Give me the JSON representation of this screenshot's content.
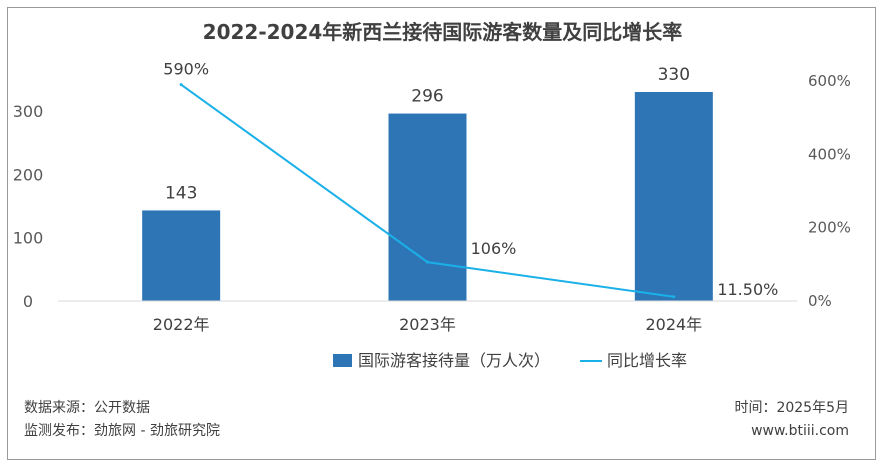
{
  "chart_data": {
    "type": "bar",
    "title": "2022-2024年新西兰接待国际游客数量及同比增长率",
    "categories": [
      "2022年",
      "2023年",
      "2024年"
    ],
    "series": [
      {
        "name": "国际游客接待量（万人次）",
        "type": "bar",
        "axis": "left",
        "values": [
          143,
          296,
          330
        ],
        "labels": [
          "143",
          "296",
          "330"
        ],
        "color": "#2e75b6"
      },
      {
        "name": "同比增长率",
        "type": "line",
        "axis": "right",
        "values": [
          590,
          106,
          11.5
        ],
        "labels": [
          "590%",
          "106%",
          "11.50%"
        ],
        "color": "#1ab0e8"
      }
    ],
    "y_left": {
      "ticks": [
        0,
        100,
        200,
        300
      ],
      "tick_labels": [
        "0",
        "100",
        "200",
        "300"
      ],
      "ylim": [
        0,
        340
      ]
    },
    "y_right": {
      "ticks": [
        0,
        200,
        400,
        600
      ],
      "tick_labels": [
        "0%",
        "200%",
        "400%",
        "600%"
      ],
      "ylim": [
        0,
        600
      ]
    },
    "grid": false,
    "legend": "bottom"
  },
  "footer": {
    "source": "数据来源：公开数据",
    "monitor": "监测发布：劲旅网 - 劲旅研究院",
    "time": "时间：2025年5月",
    "site": "www.btiii.com"
  }
}
